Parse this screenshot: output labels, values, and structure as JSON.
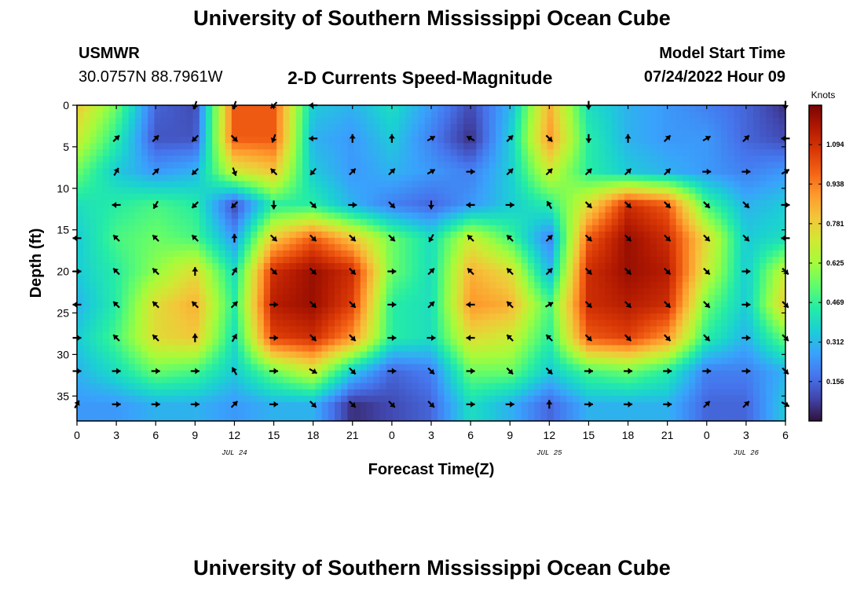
{
  "page": {
    "title_top": "University of Southern Mississippi Ocean Cube",
    "title_bottom": "University of Southern Mississippi Ocean Cube"
  },
  "header": {
    "station": "USMWR",
    "coordinates": "30.0757N  88.7961W",
    "plot_title": "2-D Currents Speed-Magnitude",
    "model_label": "Model Start Time",
    "model_time": "07/24/2022 Hour 09"
  },
  "colors": {
    "turbo": [
      "#30123b",
      "#4145ab",
      "#4675ed",
      "#39a2fc",
      "#1bcfd4",
      "#24eca6",
      "#61fc6c",
      "#a4fc3b",
      "#d1e834",
      "#f3c63a",
      "#fe9b2d",
      "#f36315",
      "#d93806",
      "#b11901",
      "#7a0402"
    ],
    "arrow": "#000000",
    "frame": "#000000"
  },
  "chart_data": {
    "type": "heatmap",
    "title": "2-D Currents Speed-Magnitude",
    "xlabel": "Forecast Time(Z)",
    "ylabel": "Depth (ft)",
    "x_ticks": [
      0,
      3,
      6,
      9,
      12,
      15,
      18,
      21,
      24,
      27,
      30,
      33,
      36,
      39,
      42,
      45,
      48,
      51,
      54
    ],
    "x_tick_labels": [
      "0",
      "3",
      "6",
      "9",
      "12",
      "15",
      "18",
      "21",
      "0",
      "3",
      "6",
      "9",
      "12",
      "15",
      "18",
      "21",
      "0",
      "3",
      "6"
    ],
    "x_range": [
      0,
      54
    ],
    "date_labels": [
      {
        "x": 12,
        "text": "JUL 24"
      },
      {
        "x": 36,
        "text": "JUL 25"
      },
      {
        "x": 51,
        "text": "JUL 26"
      }
    ],
    "y_ticks": [
      0,
      5,
      10,
      15,
      20,
      25,
      30,
      35
    ],
    "y_tick_labels": [
      "0",
      "5",
      "10",
      "15",
      "20",
      "25",
      "30",
      "35"
    ],
    "y_range": [
      0,
      38
    ],
    "colorbar": {
      "label": "Knots",
      "range": [
        0,
        1.25
      ],
      "ticks": [
        0.156,
        0.312,
        0.469,
        0.625,
        0.781,
        0.938,
        1.094
      ],
      "tick_labels": [
        "0.156",
        "0.312",
        "0.469",
        "0.625",
        "0.781",
        "0.938",
        "1.094"
      ]
    },
    "grid": {
      "x": [
        0,
        3,
        6,
        9,
        12,
        15,
        18,
        21,
        24,
        27,
        30,
        33,
        36,
        39,
        42,
        45,
        48,
        51,
        54
      ],
      "depths": [
        0,
        4,
        8,
        12,
        16,
        20,
        24,
        28,
        32,
        36
      ],
      "speed": [
        [
          0.8,
          0.55,
          0.15,
          0.1,
          1.0,
          1.0,
          0.35,
          0.3,
          0.4,
          0.25,
          0.1,
          0.3,
          0.85,
          0.4,
          0.3,
          0.25,
          0.2,
          0.15,
          0.05
        ],
        [
          0.7,
          0.45,
          0.12,
          0.12,
          1.0,
          1.0,
          0.3,
          0.25,
          0.35,
          0.2,
          0.05,
          0.35,
          0.9,
          0.45,
          0.3,
          0.25,
          0.25,
          0.15,
          0.1
        ],
        [
          0.55,
          0.35,
          0.25,
          0.3,
          0.7,
          0.8,
          0.35,
          0.25,
          0.3,
          0.25,
          0.2,
          0.35,
          0.7,
          0.45,
          0.35,
          0.3,
          0.25,
          0.2,
          0.25
        ],
        [
          0.4,
          0.45,
          0.5,
          0.45,
          0.1,
          0.45,
          0.45,
          0.3,
          0.2,
          0.15,
          0.25,
          0.35,
          0.45,
          0.75,
          1.1,
          1.0,
          0.5,
          0.3,
          0.35
        ],
        [
          0.35,
          0.5,
          0.55,
          0.5,
          0.25,
          0.8,
          1.0,
          0.8,
          0.55,
          0.4,
          0.7,
          0.5,
          0.2,
          1.0,
          1.2,
          1.1,
          0.75,
          0.35,
          0.4
        ],
        [
          0.35,
          0.45,
          0.6,
          0.75,
          0.4,
          1.1,
          1.2,
          1.1,
          0.55,
          0.4,
          0.85,
          0.75,
          0.3,
          1.1,
          1.2,
          1.15,
          0.7,
          0.35,
          0.7
        ],
        [
          0.3,
          0.45,
          0.75,
          0.85,
          0.45,
          1.15,
          1.2,
          1.05,
          0.45,
          0.4,
          0.9,
          0.85,
          0.5,
          1.1,
          1.15,
          1.1,
          0.55,
          0.35,
          0.8
        ],
        [
          0.35,
          0.5,
          0.75,
          0.8,
          0.4,
          1.05,
          1.1,
          0.9,
          0.45,
          0.4,
          0.75,
          0.7,
          0.45,
          1.0,
          1.05,
          0.9,
          0.45,
          0.3,
          0.55
        ],
        [
          0.3,
          0.4,
          0.55,
          0.5,
          0.35,
          0.55,
          0.7,
          0.35,
          0.15,
          0.2,
          0.55,
          0.55,
          0.35,
          0.5,
          0.55,
          0.45,
          0.2,
          0.2,
          0.3
        ],
        [
          0.25,
          0.25,
          0.3,
          0.3,
          0.25,
          0.3,
          0.3,
          0.05,
          0.1,
          0.15,
          0.4,
          0.3,
          0.15,
          0.3,
          0.3,
          0.3,
          0.15,
          0.15,
          0.35
        ]
      ]
    },
    "arrows": {
      "x": [
        0,
        3,
        6,
        9,
        12,
        15,
        18,
        21,
        24,
        27,
        30,
        33,
        36,
        39,
        42,
        45,
        48,
        51,
        54
      ],
      "depths": [
        0,
        4,
        8,
        12,
        16,
        20,
        24,
        28,
        32,
        36
      ],
      "direction_deg": [
        [
          null,
          null,
          null,
          200,
          200,
          225,
          270,
          null,
          null,
          null,
          null,
          null,
          null,
          180,
          null,
          null,
          null,
          null,
          180
        ],
        [
          null,
          45,
          45,
          225,
          135,
          200,
          270,
          0,
          0,
          60,
          300,
          45,
          135,
          180,
          0,
          45,
          60,
          45,
          270
        ],
        [
          null,
          30,
          45,
          225,
          160,
          315,
          220,
          45,
          45,
          60,
          90,
          45,
          45,
          45,
          45,
          45,
          90,
          90,
          60
        ],
        [
          null,
          270,
          210,
          225,
          225,
          180,
          135,
          90,
          135,
          180,
          270,
          90,
          330,
          135,
          135,
          135,
          135,
          135,
          90
        ],
        [
          270,
          315,
          315,
          315,
          0,
          135,
          135,
          135,
          135,
          210,
          315,
          315,
          45,
          135,
          135,
          135,
          135,
          135,
          270
        ],
        [
          90,
          315,
          315,
          0,
          30,
          135,
          135,
          135,
          90,
          45,
          315,
          315,
          45,
          135,
          135,
          135,
          135,
          90,
          135
        ],
        [
          270,
          315,
          315,
          315,
          45,
          90,
          135,
          135,
          90,
          45,
          270,
          315,
          60,
          135,
          135,
          135,
          135,
          90,
          135
        ],
        [
          90,
          315,
          315,
          0,
          30,
          90,
          135,
          135,
          90,
          90,
          270,
          315,
          315,
          135,
          135,
          135,
          135,
          90,
          135
        ],
        [
          90,
          90,
          90,
          90,
          330,
          90,
          120,
          135,
          90,
          135,
          90,
          135,
          135,
          90,
          90,
          90,
          90,
          90,
          135
        ],
        [
          30,
          90,
          90,
          90,
          45,
          90,
          135,
          135,
          135,
          135,
          90,
          90,
          0,
          90,
          90,
          90,
          45,
          45,
          120
        ]
      ]
    }
  }
}
